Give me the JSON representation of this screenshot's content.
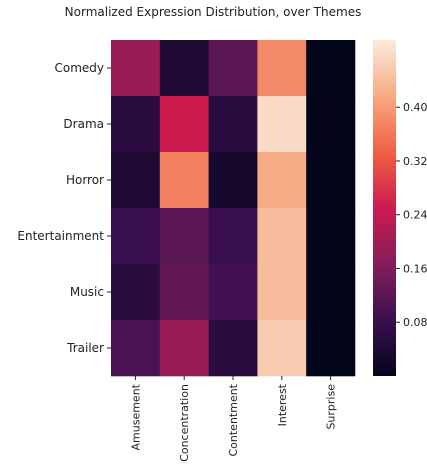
{
  "chart_data": {
    "type": "heatmap",
    "title": "Normalized Expression Distribution, over Themes",
    "rows": [
      "Comedy",
      "Drama",
      "Horror",
      "Entertainment",
      "Music",
      "Trailer"
    ],
    "columns": [
      "Amusement",
      "Concentration",
      "Contentment",
      "Interest",
      "Surprise"
    ],
    "values": [
      [
        0.19,
        0.04,
        0.12,
        0.38,
        0.0
      ],
      [
        0.06,
        0.25,
        0.06,
        0.48,
        0.0
      ],
      [
        0.04,
        0.37,
        0.03,
        0.42,
        0.0
      ],
      [
        0.08,
        0.12,
        0.08,
        0.44,
        0.0
      ],
      [
        0.06,
        0.13,
        0.09,
        0.44,
        0.0
      ],
      [
        0.1,
        0.19,
        0.06,
        0.46,
        0.0
      ]
    ],
    "colorbar": {
      "range": [
        0.0,
        0.5
      ],
      "ticks": [
        0.08,
        0.16,
        0.24,
        0.32,
        0.4
      ],
      "tick_labels": [
        "0.08",
        "0.16",
        "0.24",
        "0.32",
        "0.40"
      ]
    },
    "colormap_stops": [
      "#03051a",
      "#3b0f4f",
      "#841e5a",
      "#cb1b4f",
      "#f06043",
      "#f6aa82",
      "#faebdd"
    ]
  }
}
